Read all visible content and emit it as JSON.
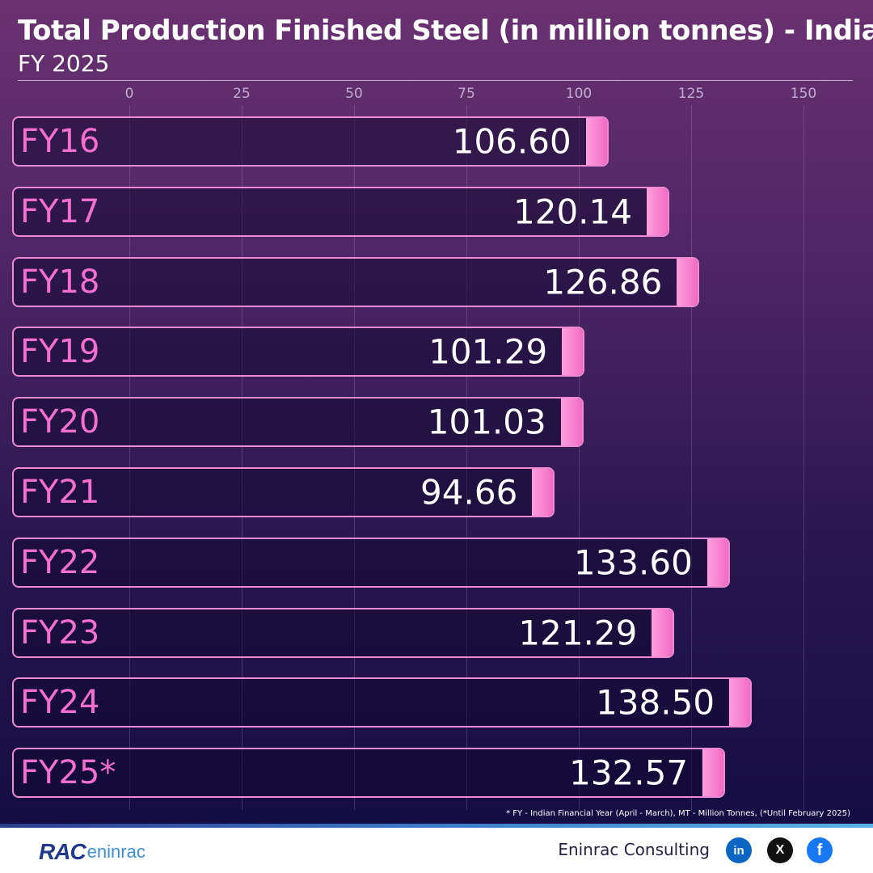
{
  "chart_data": {
    "type": "bar",
    "orientation": "horizontal",
    "title": "Total Production Finished Steel (in million tonnes) - India",
    "subtitle": "FY 2025",
    "categories": [
      "FY16",
      "FY17",
      "FY18",
      "FY19",
      "FY20",
      "FY21",
      "FY22",
      "FY23",
      "FY24",
      "FY25*"
    ],
    "values": [
      106.6,
      120.14,
      126.86,
      101.29,
      101.03,
      94.66,
      133.6,
      121.29,
      138.5,
      132.57
    ],
    "value_labels": [
      "106.60",
      "120.14",
      "126.86",
      "101.29",
      "101.03",
      "94.66",
      "133.60",
      "121.29",
      "138.50",
      "132.57"
    ],
    "xlim": [
      0,
      150
    ],
    "ticks": [
      "0",
      "25",
      "50",
      "75",
      "100",
      "125",
      "150"
    ],
    "grid": true,
    "axis_position": "top",
    "colors": {
      "bar_outline": "#f08ad3",
      "bar_cap": "#f06cc4",
      "category_text": "#f46fd0",
      "value_text": "#ffffff"
    }
  },
  "footnote": "* FY - Indian Financial Year (April - March), MT - Million Tonnes, (*Until February 2025)",
  "footer": {
    "logo_mark": "RAC",
    "logo_word": "eninrac",
    "company": "Eninrac Consulting",
    "social": [
      {
        "icon": "linkedin-icon",
        "glyph": "in",
        "color": "#0a66c2"
      },
      {
        "icon": "x-icon",
        "glyph": "X",
        "color": "#111111"
      },
      {
        "icon": "facebook-icon",
        "glyph": "f",
        "color": "#1877f2"
      }
    ]
  }
}
